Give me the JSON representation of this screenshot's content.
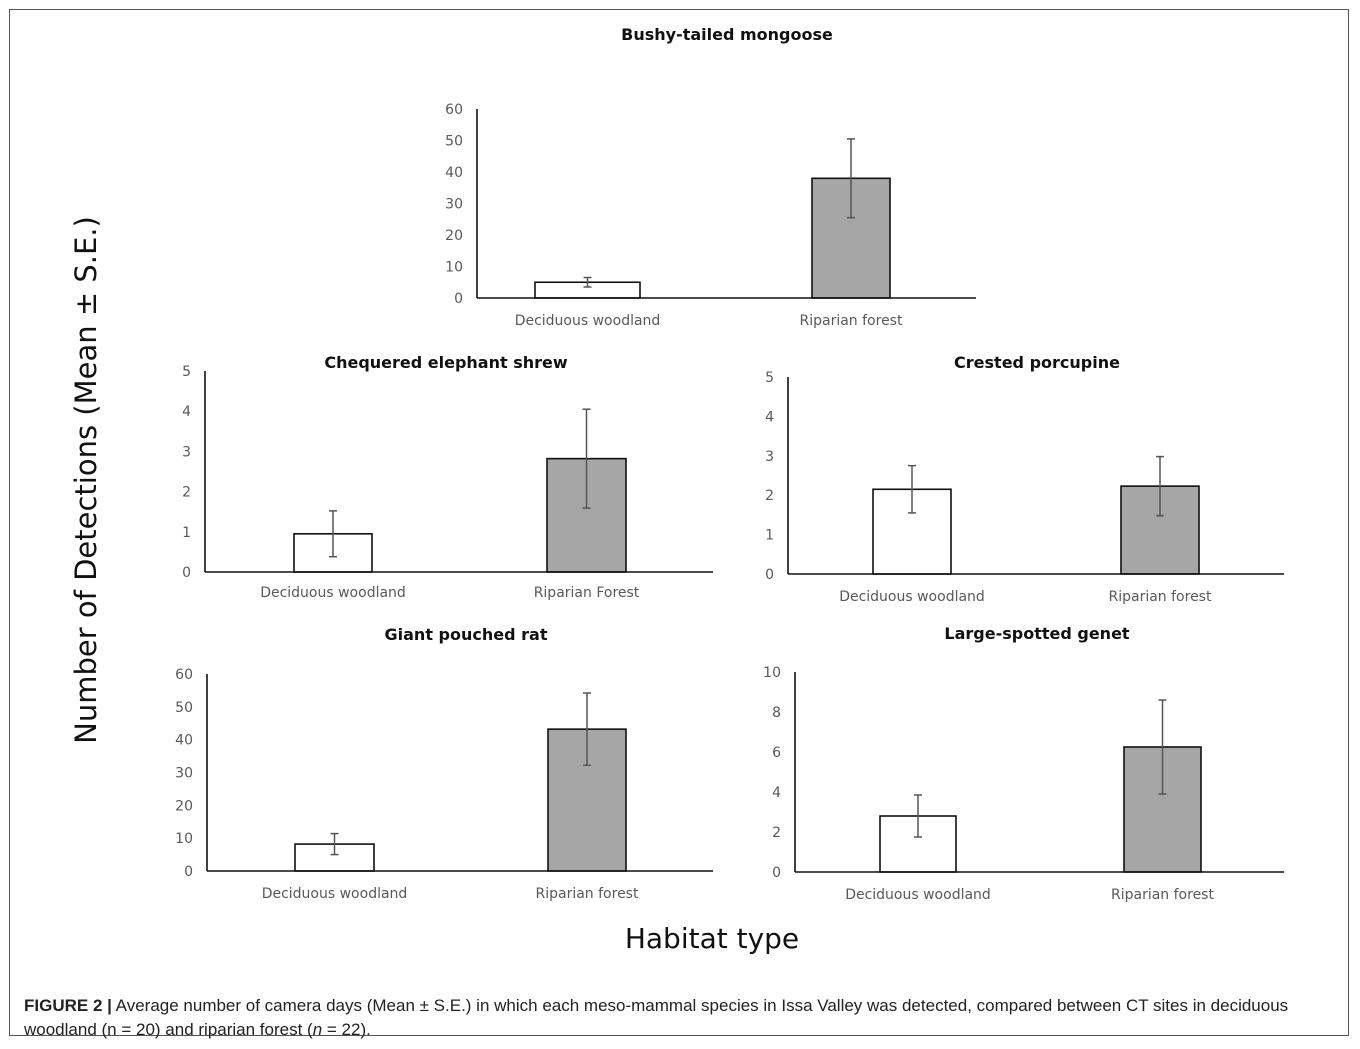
{
  "figure": {
    "y_axis_label": "Number of Detections (Mean ± S.E.)",
    "x_axis_label": "Habitat type",
    "caption_label": "FIGURE 2 |",
    "caption_text_1": " Average number of camera days (Mean ± S.E.) in which each meso-mammal species in Issa Valley was detected, compared between CT sites in deciduous woodland (n = 20) and riparian forest (",
    "caption_n": "n",
    "caption_text_2": " = 22)."
  },
  "colors": {
    "deciduous_fill": "#ffffff",
    "riparian_fill": "#a6a6a6",
    "bar_stroke": "#111111",
    "error_bar": "#555555"
  },
  "chart_data": [
    {
      "type": "bar",
      "title": "Bushy-tailed mongoose",
      "categories": [
        "Deciduous woodland",
        "Riparian forest"
      ],
      "values": [
        5,
        38
      ],
      "errors": [
        1.5,
        12.5
      ],
      "ylim": [
        0,
        60
      ],
      "yticks": [
        0,
        10,
        20,
        30,
        40,
        50,
        60
      ]
    },
    {
      "type": "bar",
      "title": "Chequered elephant shrew",
      "categories": [
        "Deciduous woodland",
        "Riparian Forest"
      ],
      "values": [
        0.95,
        2.82
      ],
      "errors": [
        0.57,
        1.23
      ],
      "ylim": [
        0,
        5
      ],
      "yticks": [
        0,
        1,
        2,
        3,
        4,
        5
      ]
    },
    {
      "type": "bar",
      "title": "Crested porcupine",
      "categories": [
        "Deciduous woodland",
        "Riparian forest"
      ],
      "values": [
        2.15,
        2.23
      ],
      "errors": [
        0.6,
        0.75
      ],
      "ylim": [
        0,
        5
      ],
      "yticks": [
        0,
        1,
        2,
        3,
        4,
        5
      ]
    },
    {
      "type": "bar",
      "title": "Giant pouched rat",
      "categories": [
        "Deciduous woodland",
        "Riparian forest"
      ],
      "values": [
        8.2,
        43.2
      ],
      "errors": [
        3.2,
        11
      ],
      "ylim": [
        0,
        60
      ],
      "yticks": [
        0,
        10,
        20,
        30,
        40,
        50,
        60
      ]
    },
    {
      "type": "bar",
      "title": "Large-spotted genet",
      "categories": [
        "Deciduous woodland",
        "Riparian forest"
      ],
      "values": [
        2.8,
        6.25
      ],
      "errors": [
        1.05,
        2.35
      ],
      "ylim": [
        0,
        10
      ],
      "yticks": [
        0,
        2,
        4,
        6,
        8,
        10
      ]
    }
  ]
}
